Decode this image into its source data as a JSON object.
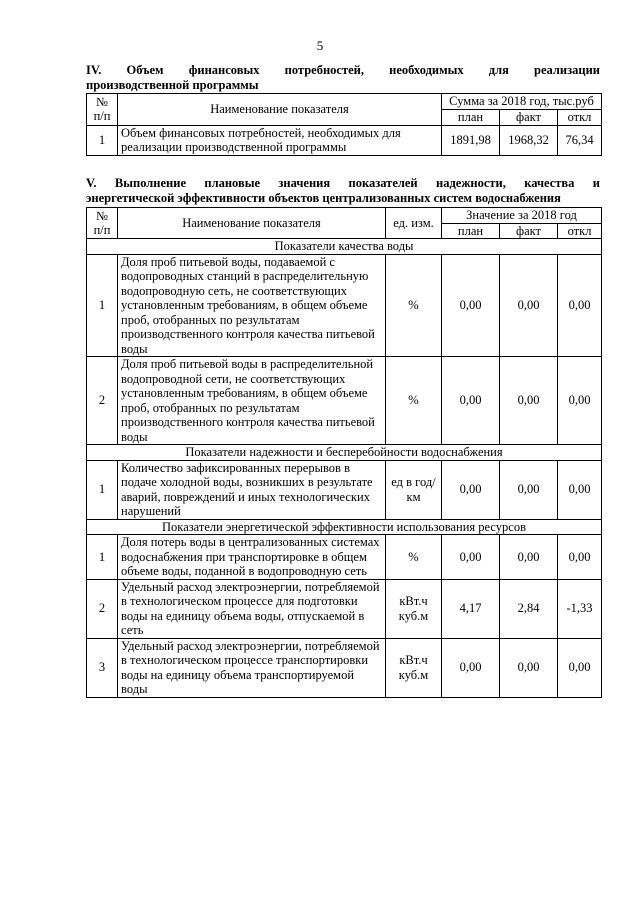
{
  "page_number": "5",
  "section4": {
    "title_line1": "IV.   Объем   финансовых   потребностей,   необходимых   для   реализации",
    "title_line2": "производственной программы",
    "headers": {
      "num": "№ п/п",
      "name": "Наименование показателя",
      "sum": "Сумма за 2018 год, тыс.руб",
      "plan": "план",
      "fact": "факт",
      "dev": "откл"
    },
    "rows": [
      {
        "num": "1",
        "name": "Объем финансовых потребностей, необходимых для реализации производственной программы",
        "plan": "1891,98",
        "fact": "1968,32",
        "dev": "76,34"
      }
    ]
  },
  "section5": {
    "title_line1": "V.  Выполнение  плановые  значения  показателей  надежности,  качества  и",
    "title_line2": "энергетической эффективности объектов централизованных систем водоснабжения",
    "headers": {
      "num": "№ п/п",
      "name": "Наименование показателя",
      "unit": "ед. изм.",
      "value": "Значение за 2018 год",
      "plan": "план",
      "fact": "факт",
      "dev": "откл"
    },
    "groups": [
      {
        "title": "Показатели качества воды",
        "rows": [
          {
            "num": "1",
            "name": "Доля проб питьевой воды, подаваемой с водопроводных станций в распределительную водопроводную сеть, не соответствующих установленным требованиям, в общем объеме проб, отобранных по результатам производственного контроля качества питьевой воды",
            "unit": "%",
            "plan": "0,00",
            "fact": "0,00",
            "dev": "0,00"
          },
          {
            "num": "2",
            "name": "Доля проб питьевой воды в распределительной водопроводной сети, не соответствующих установленным требованиям, в общем объеме проб, отобранных по результатам производственного контроля качества питьевой воды",
            "unit": "%",
            "plan": "0,00",
            "fact": "0,00",
            "dev": "0,00"
          }
        ]
      },
      {
        "title": "Показатели надежности и бесперебойности водоснабжения",
        "rows": [
          {
            "num": "1",
            "name": "Количество зафиксированных перерывов в подаче холодной воды, возникших в результате аварий, повреждений и иных технологических нарушений",
            "unit": "ед в год/ км",
            "plan": "0,00",
            "fact": "0,00",
            "dev": "0,00"
          }
        ]
      },
      {
        "title": "Показатели энергетической эффективности использования ресурсов",
        "rows": [
          {
            "num": "1",
            "name": "Доля потерь воды в централизованных системах водоснабжения при транспортировке в общем объеме воды, поданной в водопроводную сеть",
            "unit": "%",
            "plan": "0,00",
            "fact": "0,00",
            "dev": "0,00"
          },
          {
            "num": "2",
            "name": "Удельный расход электроэнергии, потребляемой в технологическом процессе для подготовки воды на единицу объема воды, отпускаемой в сеть",
            "unit": "кВт.ч куб.м",
            "plan": "4,17",
            "fact": "2,84",
            "dev": "-1,33"
          },
          {
            "num": "3",
            "name": "Удельный расход электроэнергии, потребляемой в технологическом процессе транспортировки воды на единицу объема транспортируемой воды",
            "unit": "кВт.ч куб.м",
            "plan": "0,00",
            "fact": "0,00",
            "dev": "0,00"
          }
        ]
      }
    ]
  }
}
